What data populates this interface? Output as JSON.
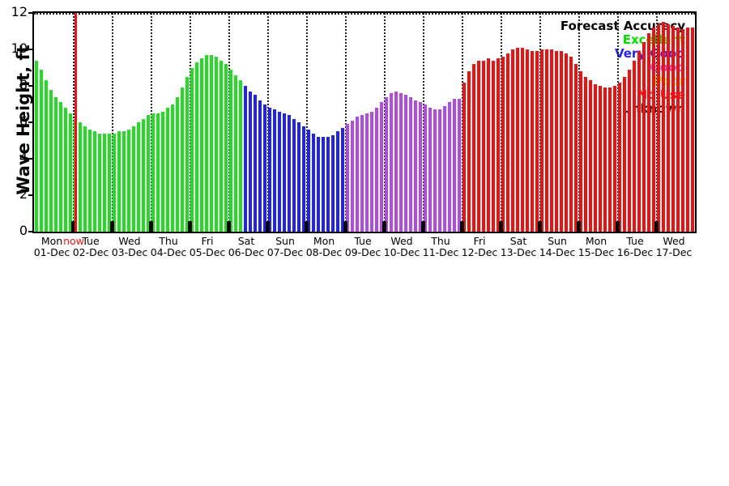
{
  "axes": {
    "ylabel": "Wave Height, ft",
    "yticks": [
      0,
      2,
      4,
      6,
      8,
      10,
      12
    ],
    "ymin": 0,
    "ymax": 12
  },
  "legend": {
    "title": "Forecast Accuracy",
    "entries": [
      {
        "label": "Excellent",
        "color": "#00dd00"
      },
      {
        "label": "Very Good",
        "color": "#2222ee"
      },
      {
        "label": "Good",
        "color": "#b24be0"
      },
      {
        "label": "Poor",
        "color": "#e8e800"
      },
      {
        "label": "No Use",
        "color": "#ee1111"
      },
      {
        "label": "Unknown",
        "color": "#000000"
      }
    ]
  },
  "now_marker": {
    "label": "now",
    "color": "#ee1111"
  },
  "chart_data": {
    "type": "bar",
    "title": "",
    "xlabel": "",
    "ylabel": "Wave Height, ft",
    "ylim": [
      0,
      12
    ],
    "grid": "vertical-dotted-daily",
    "legend_position": "top-right",
    "bar_interval_hours": 3,
    "days": [
      {
        "dow": "Mon",
        "date": "01-Dec"
      },
      {
        "dow": "Tue",
        "date": "02-Dec"
      },
      {
        "dow": "Wed",
        "date": "03-Dec"
      },
      {
        "dow": "Thu",
        "date": "04-Dec"
      },
      {
        "dow": "Fri",
        "date": "05-Dec"
      },
      {
        "dow": "Sat",
        "date": "06-Dec"
      },
      {
        "dow": "Sun",
        "date": "07-Dec"
      },
      {
        "dow": "Mon",
        "date": "08-Dec"
      },
      {
        "dow": "Tue",
        "date": "09-Dec"
      },
      {
        "dow": "Wed",
        "date": "10-Dec"
      },
      {
        "dow": "Thu",
        "date": "11-Dec"
      },
      {
        "dow": "Fri",
        "date": "12-Dec"
      },
      {
        "dow": "Sat",
        "date": "13-Dec"
      },
      {
        "dow": "Sun",
        "date": "14-Dec"
      },
      {
        "dow": "Mon",
        "date": "15-Dec"
      },
      {
        "dow": "Tue",
        "date": "16-Dec"
      },
      {
        "dow": "Wed",
        "date": "17-Dec"
      }
    ],
    "series": [
      {
        "name": "wave_height_ft",
        "values": [
          9.4,
          8.9,
          8.3,
          7.8,
          7.4,
          7.1,
          6.8,
          6.5,
          6.2,
          6.0,
          5.8,
          5.6,
          5.5,
          5.4,
          5.4,
          5.4,
          5.4,
          5.5,
          5.5,
          5.6,
          5.8,
          6.0,
          6.2,
          6.4,
          6.5,
          6.5,
          6.6,
          6.8,
          7.0,
          7.4,
          7.9,
          8.5,
          9.0,
          9.3,
          9.5,
          9.7,
          9.7,
          9.6,
          9.4,
          9.2,
          8.9,
          8.6,
          8.3,
          8.0,
          7.7,
          7.5,
          7.2,
          7.0,
          6.8,
          6.7,
          6.6,
          6.5,
          6.4,
          6.2,
          6.0,
          5.8,
          5.6,
          5.4,
          5.2,
          5.2,
          5.2,
          5.3,
          5.5,
          5.7,
          5.9,
          6.1,
          6.3,
          6.4,
          6.5,
          6.6,
          6.8,
          7.1,
          7.4,
          7.6,
          7.7,
          7.6,
          7.5,
          7.4,
          7.2,
          7.1,
          7.0,
          6.8,
          6.7,
          6.7,
          6.9,
          7.1,
          7.3,
          7.3,
          8.2,
          8.8,
          9.2,
          9.4,
          9.4,
          9.5,
          9.4,
          9.5,
          9.6,
          9.8,
          10.0,
          10.1,
          10.1,
          10.0,
          9.9,
          9.9,
          10.0,
          10.0,
          10.0,
          9.9,
          9.9,
          9.8,
          9.6,
          9.2,
          8.8,
          8.5,
          8.3,
          8.1,
          8.0,
          7.9,
          7.9,
          8.0,
          8.2,
          8.5,
          8.9,
          9.4,
          9.9,
          10.4,
          10.9,
          11.2,
          11.4,
          11.5,
          11.4,
          11.3,
          11.2,
          11.1,
          11.2,
          11.2
        ]
      }
    ],
    "accuracy_segments": [
      {
        "label": "Excellent",
        "count": 43
      },
      {
        "label": "Very Good",
        "count": 21
      },
      {
        "label": "Good",
        "count": 24
      },
      {
        "label": "No Use",
        "count": 48
      }
    ],
    "colors": {
      "Excellent": "#22dd22",
      "Very Good": "#2222ee",
      "Good": "#b24be0",
      "Poor": "#e8e800",
      "No Use": "#ee1111",
      "Unknown": "#000000"
    },
    "now_bar_index": 8.5
  }
}
